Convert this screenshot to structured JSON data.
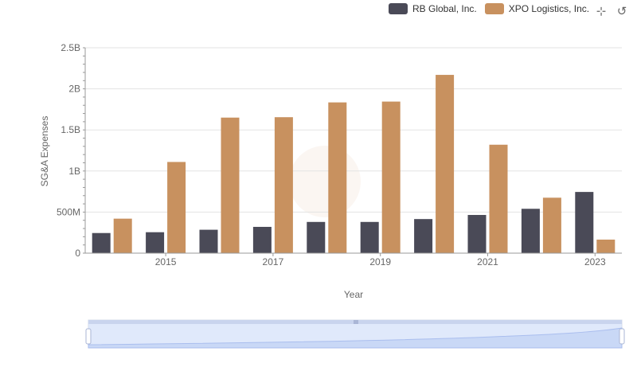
{
  "legend": [
    {
      "name": "RB Global, Inc.",
      "color": "#4a4a57"
    },
    {
      "name": "XPO Logistics, Inc.",
      "color": "#c8915f"
    }
  ],
  "toolbar": {
    "zoom_icon": "zoom-icon",
    "restore_icon": "restore-icon"
  },
  "chart_data": {
    "type": "bar",
    "title": "",
    "xlabel": "Year",
    "ylabel": "SG&A Expenses",
    "categories": [
      "2014",
      "2015",
      "2016",
      "2017",
      "2018",
      "2019",
      "2020",
      "2021",
      "2022",
      "2023"
    ],
    "x_tick_labels": [
      "2015",
      "2017",
      "2019",
      "2021",
      "2023"
    ],
    "y_tick_labels": [
      "0",
      "500M",
      "1B",
      "1.5B",
      "2B",
      "2.5B"
    ],
    "ylim": [
      0,
      2500000000
    ],
    "grid": true,
    "legend_position": "top-right",
    "series": [
      {
        "name": "RB Global, Inc.",
        "color": "#4a4a57",
        "values": [
          245000000,
          255000000,
          285000000,
          320000000,
          380000000,
          380000000,
          415000000,
          465000000,
          540000000,
          745000000
        ]
      },
      {
        "name": "XPO Logistics, Inc.",
        "color": "#c8915f",
        "values": [
          420000000,
          1110000000,
          1650000000,
          1655000000,
          1835000000,
          1845000000,
          2170000000,
          1320000000,
          675000000,
          165000000
        ]
      }
    ],
    "datazoom": {
      "start": 0,
      "end": 100
    }
  }
}
